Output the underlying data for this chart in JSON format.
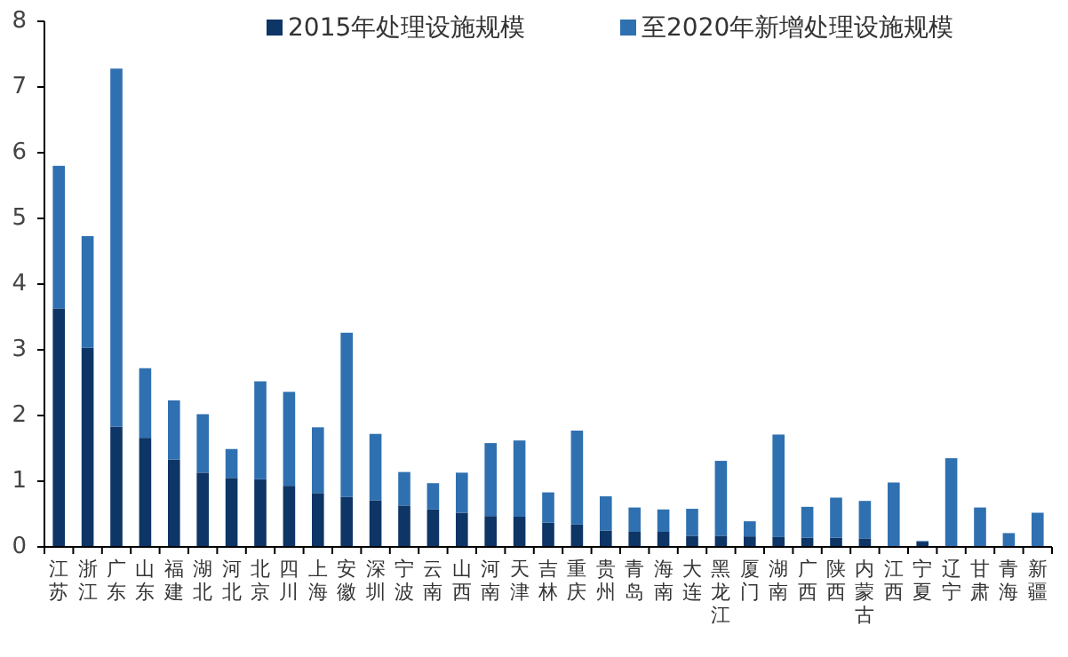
{
  "chart_data": {
    "type": "bar",
    "stacked": true,
    "legend": "top",
    "grid": false,
    "categories": [
      "江苏",
      "浙江",
      "广东",
      "山东",
      "福建",
      "湖北",
      "河北",
      "北京",
      "四川",
      "上海",
      "安徽",
      "深圳",
      "宁波",
      "云南",
      "山西",
      "河南",
      "天津",
      "吉林",
      "重庆",
      "贵州",
      "青岛",
      "海南",
      "大连",
      "黑龙江",
      "厦门",
      "湖南",
      "广西",
      "陕西",
      "内蒙古",
      "江西",
      "宁夏",
      "辽宁",
      "甘肃",
      "青海",
      "新疆"
    ],
    "series": [
      {
        "name": "2015年处理设施规模",
        "color": "#0d3566",
        "values": [
          3.63,
          3.03,
          1.83,
          1.66,
          1.33,
          1.13,
          1.05,
          1.03,
          0.93,
          0.82,
          0.76,
          0.71,
          0.63,
          0.57,
          0.52,
          0.47,
          0.46,
          0.37,
          0.34,
          0.25,
          0.23,
          0.23,
          0.17,
          0.17,
          0.16,
          0.15,
          0.14,
          0.14,
          0.13,
          0,
          0.08,
          0.01,
          0,
          0,
          0
        ]
      },
      {
        "name": "至2020年新增处理设施规模",
        "color": "#2f70b0",
        "values": [
          2.17,
          1.7,
          5.45,
          1.06,
          0.9,
          0.89,
          0.44,
          1.49,
          1.43,
          1.0,
          2.5,
          1.01,
          0.51,
          0.4,
          0.61,
          1.11,
          1.16,
          0.46,
          1.43,
          0.52,
          0.37,
          0.34,
          0.41,
          1.14,
          0.23,
          1.56,
          0.47,
          0.61,
          0.57,
          0.98,
          0.01,
          1.34,
          0.6,
          0.21,
          0.52
        ]
      }
    ],
    "ylim": [
      0,
      8
    ],
    "yticks": [
      0,
      1,
      2,
      3,
      4,
      5,
      6,
      7,
      8
    ]
  }
}
